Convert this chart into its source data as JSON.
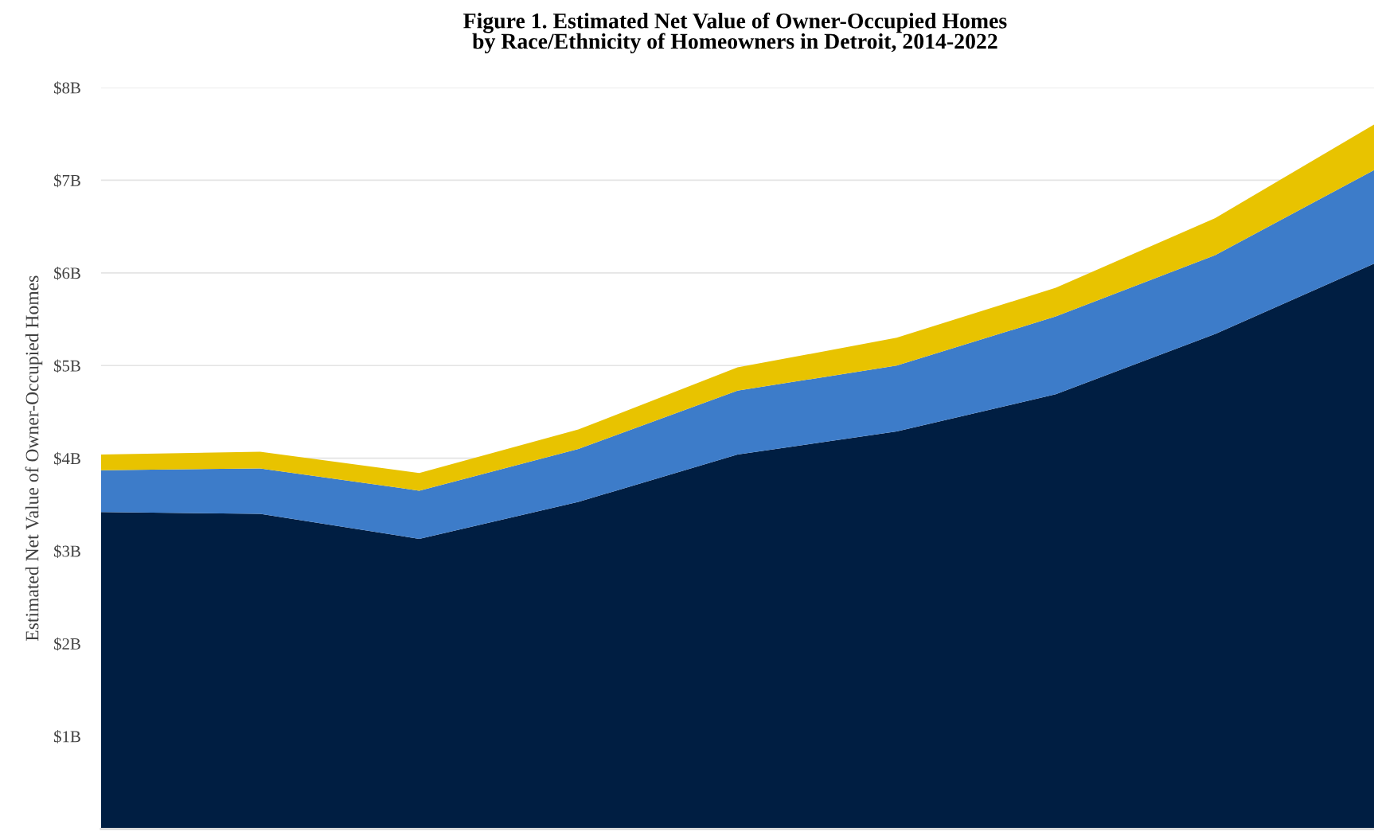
{
  "chart_data": {
    "type": "area",
    "stacked": true,
    "title": "Figure 1. Estimated Net Value of Owner-Occupied Homes\nby Race/Ethnicity of Homeowners in Detroit, 2014-2022",
    "ylabel": "Estimated Net Value of Owner-Occupied Homes",
    "categories": [
      null,
      null,
      null,
      null,
      null,
      null,
      null,
      null,
      null
    ],
    "series": [
      {
        "color": "#001e42",
        "values": [
          3.42,
          3.4,
          3.13,
          3.53,
          4.04,
          4.29,
          4.69,
          5.34,
          6.1
        ]
      },
      {
        "color": "#3d7cc9",
        "values": [
          0.45,
          0.49,
          0.52,
          0.57,
          0.69,
          0.71,
          0.84,
          0.85,
          1.01
        ]
      },
      {
        "color": "#e8c300",
        "values": [
          0.17,
          0.18,
          0.19,
          0.21,
          0.25,
          0.3,
          0.31,
          0.4,
          0.49
        ]
      }
    ],
    "ylim": [
      0,
      8
    ],
    "yticks": [
      {
        "value": 1,
        "label": "$1B"
      },
      {
        "value": 2,
        "label": "$2B"
      },
      {
        "value": 3,
        "label": "$3B"
      },
      {
        "value": 4,
        "label": "$4B"
      },
      {
        "value": 5,
        "label": "$5B"
      },
      {
        "value": 6,
        "label": "$6B"
      },
      {
        "value": 7,
        "label": "$7B"
      },
      {
        "value": 8,
        "label": "$8B"
      }
    ],
    "grid": "y",
    "legend": false
  }
}
